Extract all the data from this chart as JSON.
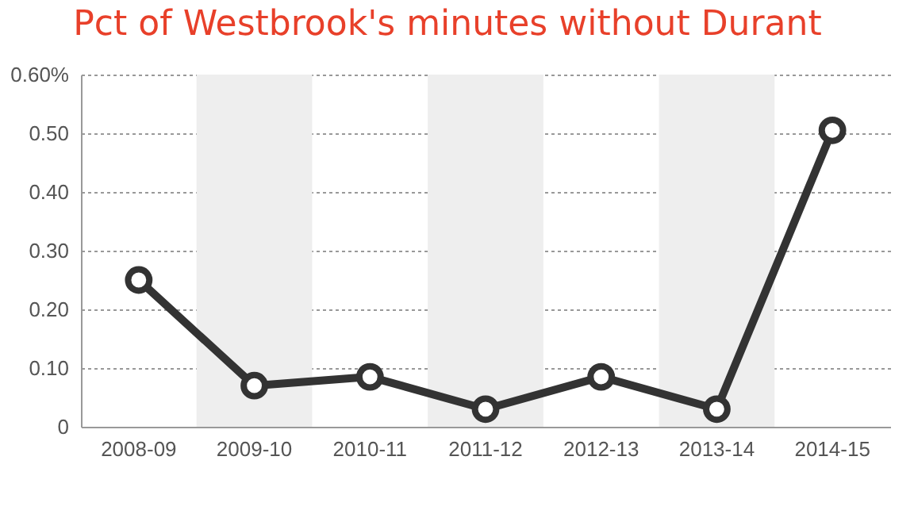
{
  "chart_data": {
    "type": "line",
    "title": "Pct of Westbrook's minutes without Durant",
    "categories": [
      "2008-09",
      "2009-10",
      "2010-11",
      "2011-12",
      "2012-13",
      "2013-14",
      "2014-15"
    ],
    "series": [
      {
        "color": "#333333",
        "values": [
          0.25,
          0.07,
          0.085,
          0.03,
          0.085,
          0.03,
          0.505
        ]
      }
    ],
    "ylim": [
      0,
      0.6
    ],
    "yticks": [
      0,
      {
        "value": 0.1,
        "label": "0.10"
      },
      {
        "value": 0.2,
        "label": "0.20"
      },
      {
        "value": 0.3,
        "label": "0.30"
      },
      {
        "value": 0.4,
        "label": "0.40"
      },
      {
        "value": 0.5,
        "label": "0.50"
      },
      {
        "value": 0.6,
        "label": "0.60%"
      }
    ],
    "bands": [
      {
        "axis": "x",
        "from": "2009-10",
        "to": "2009-10",
        "color": "#eeeeee"
      },
      {
        "axis": "x",
        "from": "2011-12",
        "to": "2011-12",
        "color": "#eeeeee"
      },
      {
        "axis": "x",
        "from": "2013-14",
        "to": "2013-14",
        "color": "#eeeeee"
      }
    ],
    "grid": "y",
    "marker": "circle",
    "line_style": "solid"
  }
}
